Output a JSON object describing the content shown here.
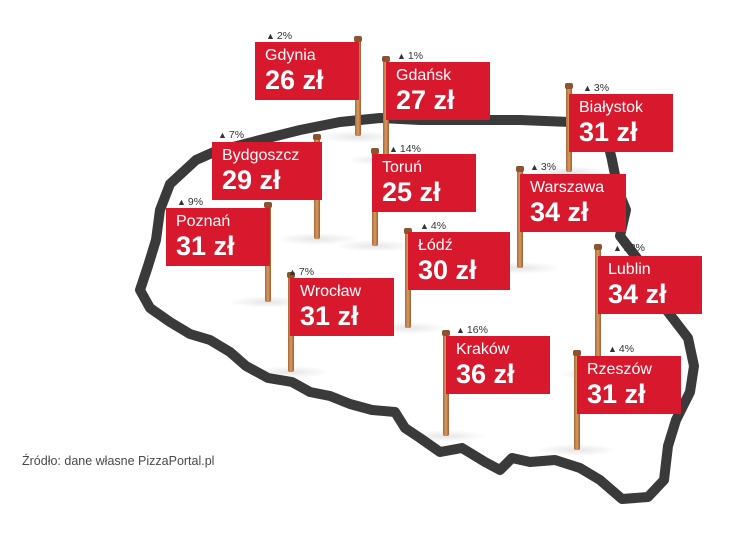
{
  "map": {
    "currency": "zł",
    "markers": [
      {
        "id": "gdynia",
        "city": "Gdynia",
        "price": "26 zł",
        "change": "2%"
      },
      {
        "id": "gdansk",
        "city": "Gdańsk",
        "price": "27 zł",
        "change": "1%"
      },
      {
        "id": "bialystok",
        "city": "Białystok",
        "price": "31 zł",
        "change": "3%"
      },
      {
        "id": "bydgoszcz",
        "city": "Bydgoszcz",
        "price": "29 zł",
        "change": "7%"
      },
      {
        "id": "torun",
        "city": "Toruń",
        "price": "25 zł",
        "change": "14%"
      },
      {
        "id": "warszawa",
        "city": "Warszawa",
        "price": "34 zł",
        "change": "3%"
      },
      {
        "id": "poznan",
        "city": "Poznań",
        "price": "31 zł",
        "change": "9%"
      },
      {
        "id": "lodz",
        "city": "Łódź",
        "price": "30 zł",
        "change": "4%"
      },
      {
        "id": "lublin",
        "city": "Lublin",
        "price": "34 zł",
        "change": "23%"
      },
      {
        "id": "wroclaw",
        "city": "Wrocław",
        "price": "31 zł",
        "change": "7%"
      },
      {
        "id": "krakow",
        "city": "Kraków",
        "price": "36 zł",
        "change": "16%"
      },
      {
        "id": "rzeszow",
        "city": "Rzeszów",
        "price": "31 zł",
        "change": "4%"
      }
    ],
    "arrow_symbol": "▲",
    "colors": {
      "flag": "#d8192d",
      "outline": "#3a3a3a",
      "pole": "#c4874f"
    }
  },
  "source": "Źródło: dane własne PizzaPortal.pl"
}
